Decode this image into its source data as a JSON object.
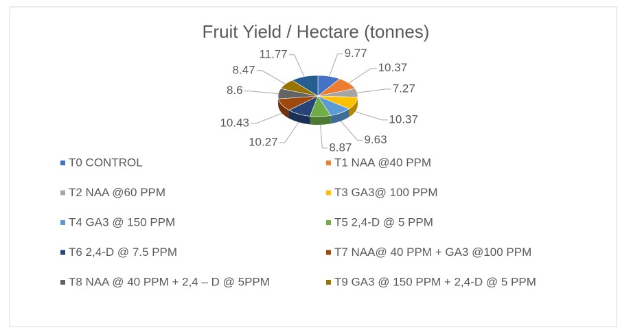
{
  "chart_data": {
    "type": "pie",
    "title": "Fruit Yield / Hectare (tonnes)",
    "categories": [
      "T0 CONTROL",
      "T1 NAA @40 PPM",
      "T2 NAA @60 PPM",
      "T3 GA3@ 100 PPM",
      "T4 GA3 @ 150 PPM",
      "T5 2,4-D @ 5 PPM",
      "T6 2,4-D @ 7.5 PPM",
      "T7 NAA@ 40 PPM + GA3 @100 PPM",
      "T8 NAA @ 40 PPM + 2,4 – D @ 5PPM",
      "T9 GA3 @ 150 PPM + 2,4-D @ 5 PPM",
      null
    ],
    "values": [
      9.77,
      10.37,
      7.27,
      10.37,
      9.63,
      8.87,
      10.27,
      10.43,
      8.6,
      8.47,
      11.77
    ],
    "colors": [
      "#4472c4",
      "#ed7d31",
      "#a5a5a5",
      "#ffc000",
      "#5b9bd5",
      "#70ad47",
      "#264478",
      "#9e480e",
      "#636363",
      "#997300",
      "#255e91"
    ],
    "style": "3d",
    "legend": "bottom"
  }
}
